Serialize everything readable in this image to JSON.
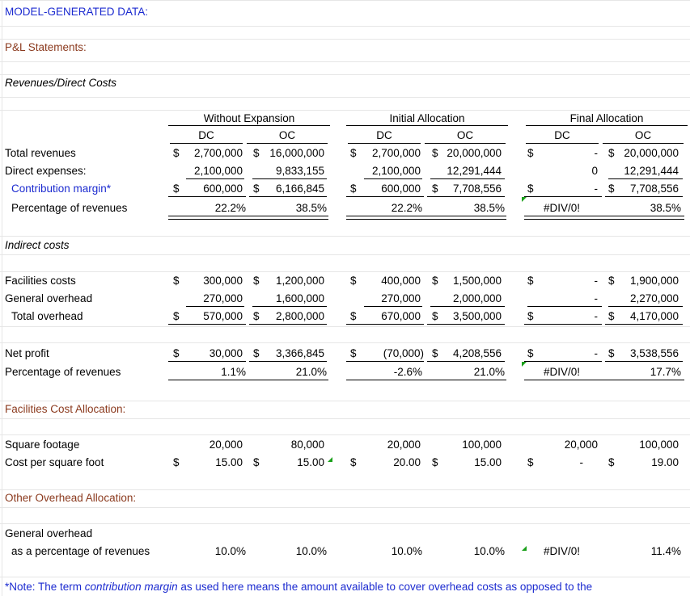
{
  "headers": {
    "model_data": "MODEL-GENERATED DATA:",
    "pl": "P&L Statements:",
    "revenues_direct": "Revenues/Direct Costs",
    "indirect": "Indirect costs",
    "facilities_alloc": "Facilities Cost Allocation:",
    "other_alloc": "Other Overhead Allocation:"
  },
  "groups": {
    "without_expansion": "Without Expansion",
    "initial_allocation": "Initial Allocation",
    "final_allocation": "Final Allocation"
  },
  "cols": {
    "dc": "DC",
    "oc": "OC"
  },
  "sym": {
    "dollar": "$",
    "dash": "-"
  },
  "labels": {
    "total_revenues": "Total revenues",
    "direct_expenses": "Direct expenses:",
    "contribution_margin": "Contribution margin*",
    "pct_revenues": "Percentage of revenues",
    "facilities_costs": "Facilities costs",
    "general_overhead": "General overhead",
    "total_overhead": "Total overhead",
    "net_profit": "Net profit",
    "pct_revenues2": "Percentage of revenues",
    "square_footage": "Square footage",
    "cost_per_sqft": "Cost per square foot",
    "general_overhead2": "General overhead",
    "as_pct_revenues": "as a percentage of revenues"
  },
  "rows": {
    "total_revenues": [
      "2,700,000",
      "16,000,000",
      "2,700,000",
      "20,000,000",
      "-",
      "20,000,000"
    ],
    "direct_expenses": [
      "2,100,000",
      "9,833,155",
      "2,100,000",
      "12,291,444",
      "0",
      "12,291,444"
    ],
    "contribution_margin": [
      "600,000",
      "6,166,845",
      "600,000",
      "7,708,556",
      "-",
      "7,708,556"
    ],
    "pct_revenues": [
      "22.2%",
      "38.5%",
      "22.2%",
      "38.5%",
      "#DIV/0!",
      "38.5%"
    ],
    "facilities_costs": [
      "300,000",
      "1,200,000",
      "400,000",
      "1,500,000",
      "-",
      "1,900,000"
    ],
    "general_overhead": [
      "270,000",
      "1,600,000",
      "270,000",
      "2,000,000",
      "-",
      "2,270,000"
    ],
    "total_overhead": [
      "570,000",
      "2,800,000",
      "670,000",
      "3,500,000",
      "-",
      "4,170,000"
    ],
    "net_profit": [
      "30,000",
      "3,366,845",
      "(70,000)",
      "4,208,556",
      "-",
      "3,538,556"
    ],
    "pct_revenues2": [
      "1.1%",
      "21.0%",
      "-2.6%",
      "21.0%",
      "#DIV/0!",
      "17.7%"
    ],
    "square_footage": [
      "20,000",
      "80,000",
      "20,000",
      "100,000",
      "20,000",
      "100,000"
    ],
    "cost_per_sqft": [
      "15.00",
      "15.00",
      "20.00",
      "15.00",
      "-",
      "19.00"
    ],
    "overhead_pct": [
      "10.0%",
      "10.0%",
      "10.0%",
      "10.0%",
      "#DIV/0!",
      "11.4%"
    ]
  },
  "note": {
    "prefix": "*Note:  The term ",
    "term": "contribution margin",
    "suffix": " as used here means the amount available to cover overhead costs as opposed to the"
  },
  "colors": {
    "blue_text": "#1c2bd0",
    "brown_text": "#8b3a1e",
    "error_marker": "#1aa01a"
  }
}
